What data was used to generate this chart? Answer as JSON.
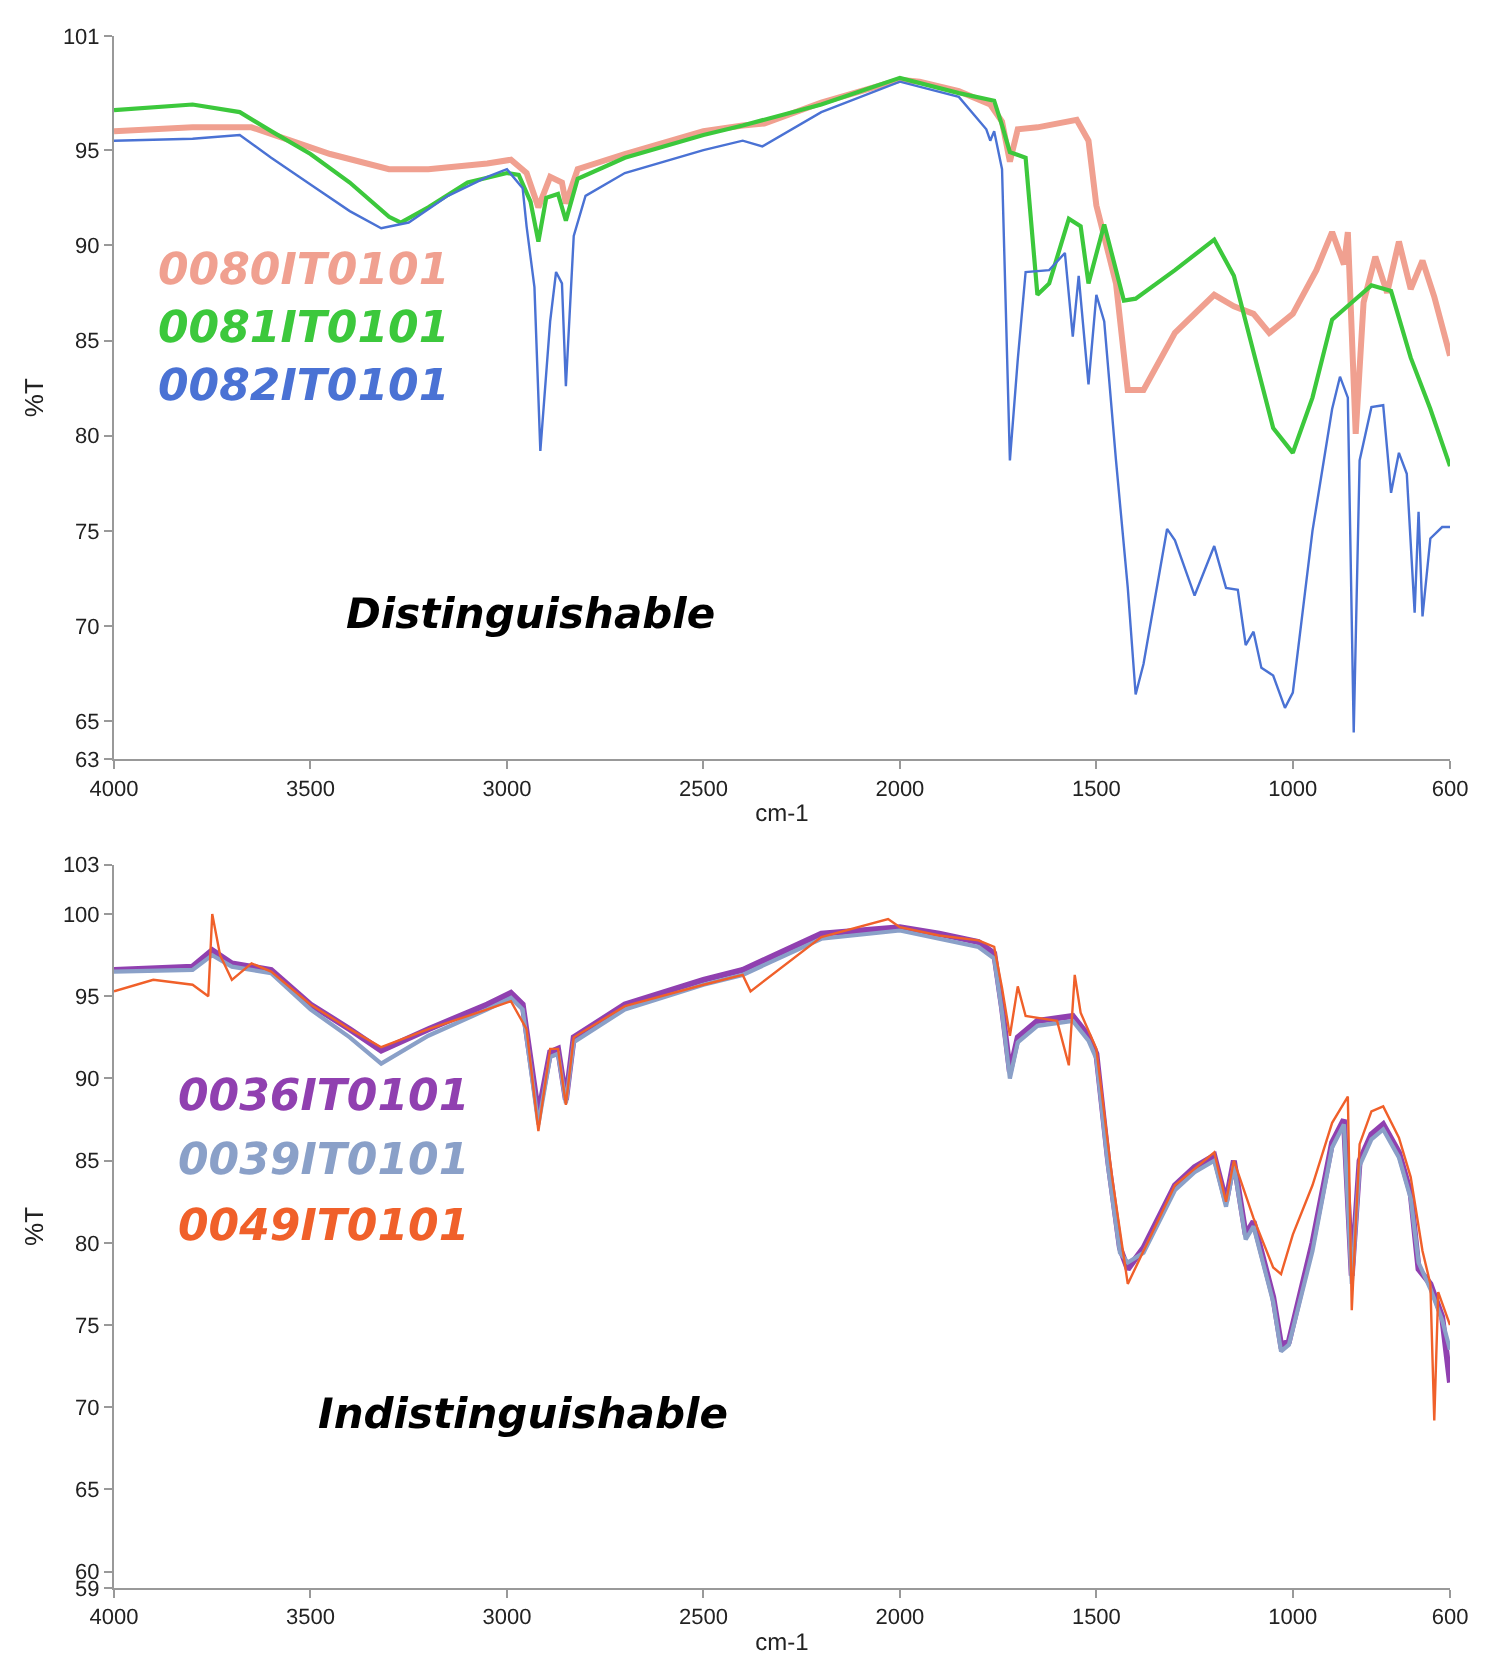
{
  "chart_data": [
    {
      "type": "line",
      "xlabel": "cm-1",
      "ylabel": "%T",
      "xlim": [
        4000,
        600
      ],
      "xticks": [
        4000,
        3500,
        3000,
        2500,
        2000,
        1500,
        1000,
        600
      ],
      "ylim": [
        63,
        101
      ],
      "yticks": [
        63,
        65,
        70,
        75,
        80,
        85,
        90,
        95,
        101
      ],
      "grid": false,
      "legend": false,
      "marker": "none",
      "line_style": "solid",
      "annotations": [
        "Distinguishable"
      ],
      "series": [
        {
          "name": "0080IT0101",
          "color": "#f0a090",
          "x": [
            4000,
            3800,
            3650,
            3550,
            3450,
            3300,
            3200,
            3050,
            2990,
            2950,
            2920,
            2890,
            2860,
            2850,
            2820,
            2700,
            2500,
            2400,
            2345,
            2200,
            2000,
            1950,
            1850,
            1770,
            1740,
            1720,
            1700,
            1650,
            1550,
            1520,
            1500,
            1450,
            1420,
            1380,
            1300,
            1200,
            1150,
            1100,
            1060,
            1000,
            940,
            900,
            870,
            860,
            840,
            820,
            790,
            760,
            730,
            700,
            670,
            640,
            600
          ],
          "values": [
            96,
            96.2,
            96.2,
            95.5,
            94.8,
            94,
            94,
            94.3,
            94.5,
            93.8,
            92,
            93.6,
            93.3,
            92.2,
            94,
            94.8,
            96,
            96.3,
            96.4,
            97.5,
            98.7,
            98.6,
            98.1,
            97.4,
            96.5,
            94.4,
            96.1,
            96.2,
            96.6,
            95.5,
            92.1,
            88,
            82.4,
            82.4,
            85.4,
            87.4,
            86.8,
            86.4,
            85.4,
            86.4,
            88.7,
            90.7,
            89,
            90.7,
            80.1,
            87,
            89.4,
            87.5,
            90.2,
            87.7,
            89.2,
            87.3,
            84.2
          ]
        },
        {
          "name": "0081IT0101",
          "color": "#3cc83c",
          "x": [
            4000,
            3800,
            3680,
            3600,
            3500,
            3400,
            3300,
            3270,
            3200,
            3100,
            3000,
            2970,
            2940,
            2920,
            2900,
            2870,
            2850,
            2820,
            2700,
            2500,
            2400,
            2200,
            2000,
            1850,
            1760,
            1740,
            1720,
            1680,
            1650,
            1620,
            1570,
            1540,
            1520,
            1480,
            1430,
            1400,
            1300,
            1200,
            1150,
            1100,
            1050,
            1000,
            950,
            900,
            850,
            800,
            750,
            700,
            650,
            600
          ],
          "values": [
            97.1,
            97.4,
            97,
            96,
            94.8,
            93.3,
            91.5,
            91.2,
            92,
            93.3,
            93.8,
            93.7,
            92.3,
            90.2,
            92.5,
            92.7,
            91.3,
            93.5,
            94.6,
            95.8,
            96.3,
            97.4,
            98.8,
            98,
            97.6,
            96.3,
            94.9,
            94.6,
            87.4,
            88,
            91.4,
            91,
            88,
            91.1,
            87.1,
            87.2,
            88.7,
            90.3,
            88.4,
            84.4,
            80.4,
            79.1,
            82,
            86.1,
            87,
            87.9,
            87.6,
            84.1,
            81.4,
            78.4
          ]
        },
        {
          "name": "0082IT0101",
          "color": "#4a72d4",
          "x": [
            4000,
            3800,
            3680,
            3600,
            3500,
            3400,
            3320,
            3250,
            3150,
            3050,
            3000,
            2960,
            2950,
            2930,
            2915,
            2890,
            2875,
            2860,
            2850,
            2830,
            2800,
            2700,
            2500,
            2400,
            2350,
            2200,
            2000,
            1850,
            1780,
            1770,
            1760,
            1740,
            1720,
            1700,
            1680,
            1620,
            1580,
            1560,
            1545,
            1520,
            1500,
            1480,
            1450,
            1420,
            1400,
            1380,
            1320,
            1300,
            1250,
            1200,
            1170,
            1140,
            1120,
            1100,
            1080,
            1050,
            1020,
            1000,
            950,
            900,
            880,
            860,
            845,
            830,
            800,
            770,
            750,
            730,
            710,
            690,
            680,
            670,
            650,
            620,
            600
          ],
          "values": [
            95.5,
            95.6,
            95.8,
            94.6,
            93.2,
            91.8,
            90.9,
            91.2,
            92.6,
            93.6,
            94,
            93,
            91,
            87.8,
            79.2,
            86,
            88.6,
            88,
            82.6,
            90.5,
            92.6,
            93.8,
            95,
            95.5,
            95.2,
            97,
            98.6,
            97.8,
            96.1,
            95.5,
            96,
            94,
            78.7,
            84,
            88.6,
            88.7,
            89.6,
            85.2,
            88.4,
            82.7,
            87.4,
            86,
            78.7,
            72,
            66.4,
            68,
            75.1,
            74.5,
            71.6,
            74.2,
            72,
            71.9,
            69,
            69.7,
            67.8,
            67.4,
            65.7,
            66.5,
            75,
            81.4,
            83.1,
            82,
            64.4,
            78.7,
            81.5,
            81.6,
            77,
            79.1,
            78,
            70.7,
            76,
            70.5,
            74.6,
            75.2,
            75.2
          ]
        }
      ]
    },
    {
      "type": "line",
      "xlabel": "cm-1",
      "ylabel": "%T",
      "xlim": [
        4000,
        600
      ],
      "xticks": [
        4000,
        3500,
        3000,
        2500,
        2000,
        1500,
        1000,
        600
      ],
      "ylim": [
        59,
        103
      ],
      "yticks": [
        59,
        60,
        65,
        70,
        75,
        80,
        85,
        90,
        95,
        100,
        103
      ],
      "grid": false,
      "legend": false,
      "marker": "none",
      "line_style": "solid",
      "annotations": [
        "Indistinguishable"
      ],
      "series": [
        {
          "name": "0036IT0101",
          "color": "#9040b0",
          "x": [
            4000,
            3800,
            3750,
            3700,
            3600,
            3500,
            3400,
            3320,
            3200,
            3050,
            2990,
            2960,
            2920,
            2890,
            2870,
            2850,
            2830,
            2700,
            2500,
            2400,
            2200,
            2000,
            1900,
            1800,
            1760,
            1740,
            1720,
            1700,
            1650,
            1560,
            1520,
            1500,
            1470,
            1440,
            1420,
            1380,
            1300,
            1250,
            1200,
            1170,
            1150,
            1120,
            1100,
            1050,
            1030,
            1010,
            950,
            900,
            870,
            850,
            830,
            800,
            770,
            730,
            700,
            680,
            650,
            620,
            600
          ],
          "values": [
            96.6,
            96.8,
            97.8,
            97,
            96.6,
            94.5,
            93,
            91.7,
            93,
            94.5,
            95.2,
            94.5,
            87.8,
            91.6,
            91.8,
            88.7,
            92.5,
            94.5,
            96,
            96.6,
            98.8,
            99.2,
            98.8,
            98.3,
            97.6,
            94.3,
            90.4,
            92.5,
            93.5,
            93.8,
            92.6,
            91.5,
            85,
            79.7,
            78.4,
            79.7,
            83.5,
            84.6,
            85.3,
            82.5,
            85,
            80.5,
            81.3,
            76.7,
            73.8,
            74,
            80,
            86.1,
            87.5,
            78,
            85,
            86.6,
            87.2,
            85.5,
            83,
            78.4,
            77.5,
            75.5,
            71.5
          ]
        },
        {
          "name": "0039IT0101",
          "color": "#8aa0c8",
          "x": [
            4000,
            3800,
            3750,
            3700,
            3600,
            3500,
            3400,
            3320,
            3200,
            3050,
            2990,
            2960,
            2920,
            2890,
            2870,
            2850,
            2830,
            2700,
            2500,
            2400,
            2200,
            2000,
            1900,
            1800,
            1760,
            1740,
            1720,
            1700,
            1650,
            1560,
            1520,
            1500,
            1470,
            1440,
            1420,
            1380,
            1300,
            1250,
            1200,
            1170,
            1150,
            1120,
            1100,
            1050,
            1030,
            1010,
            950,
            900,
            870,
            850,
            830,
            800,
            770,
            730,
            700,
            680,
            650,
            620,
            600
          ],
          "values": [
            96.5,
            96.6,
            97.5,
            96.8,
            96.4,
            94.2,
            92.5,
            90.9,
            92.6,
            94.2,
            94.9,
            94.2,
            87.2,
            91.3,
            91.5,
            88.5,
            92.2,
            94.2,
            95.7,
            96.3,
            98.5,
            99,
            98.5,
            98,
            97.3,
            94,
            90,
            92.2,
            93.2,
            93.5,
            92.3,
            91.2,
            84.6,
            79.4,
            78.8,
            79.4,
            83.2,
            84.3,
            85,
            82.2,
            84.7,
            80.2,
            81,
            76.4,
            73.4,
            73.8,
            79.5,
            85.8,
            87.2,
            77.5,
            84.7,
            86.3,
            86.9,
            85.2,
            82.7,
            78.8,
            77.2,
            75.3,
            73.5
          ]
        },
        {
          "name": "0049IT0101",
          "color": "#f0602a",
          "x": [
            4000,
            3900,
            3800,
            3760,
            3750,
            3730,
            3700,
            3650,
            3600,
            3500,
            3400,
            3320,
            3200,
            3050,
            2990,
            2950,
            2920,
            2890,
            2870,
            2850,
            2830,
            2700,
            2500,
            2400,
            2380,
            2200,
            2030,
            2000,
            1900,
            1800,
            1760,
            1740,
            1720,
            1700,
            1680,
            1600,
            1570,
            1555,
            1540,
            1500,
            1460,
            1420,
            1380,
            1300,
            1200,
            1170,
            1150,
            1100,
            1050,
            1030,
            1000,
            950,
            900,
            860,
            850,
            830,
            800,
            770,
            730,
            700,
            670,
            650,
            640,
            630,
            600
          ],
          "values": [
            95.3,
            96,
            95.7,
            95,
            100,
            97.5,
            96,
            97,
            96.5,
            94.5,
            93,
            91.9,
            93,
            94.2,
            94.7,
            93,
            86.8,
            91.8,
            91.8,
            88.4,
            92.5,
            94.4,
            95.7,
            96.3,
            95.3,
            98.6,
            99.7,
            99.2,
            98.7,
            98.4,
            98,
            95.5,
            92.6,
            95.6,
            93.8,
            93.5,
            90.8,
            96.3,
            94,
            91.8,
            84,
            77.5,
            79.5,
            83.5,
            85.5,
            82.5,
            85,
            81.5,
            78.5,
            78.1,
            80.5,
            83.5,
            87.3,
            88.9,
            75.9,
            86,
            88,
            88.3,
            86.4,
            84,
            79.5,
            77.5,
            69.2,
            77,
            75
          ]
        }
      ]
    }
  ]
}
